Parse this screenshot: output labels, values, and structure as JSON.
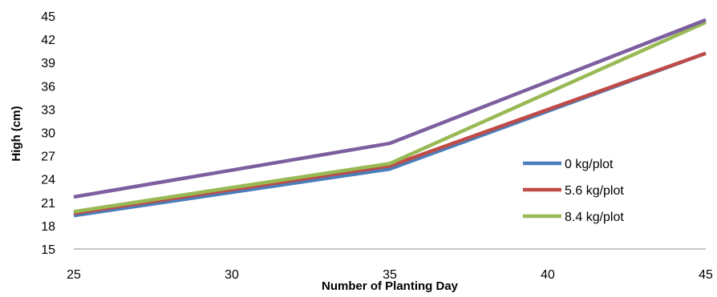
{
  "chart_data": {
    "type": "line",
    "xlabel": "Number of Planting Day",
    "ylabel": "High (cm)",
    "xlim": [
      25,
      45
    ],
    "ylim": [
      15,
      45
    ],
    "xticks": [
      25,
      30,
      35,
      40,
      45
    ],
    "yticks": [
      15,
      18,
      21,
      24,
      27,
      30,
      33,
      36,
      39,
      42,
      45
    ],
    "grid": false,
    "legend_position": "right",
    "x": [
      25,
      35,
      45
    ],
    "series": [
      {
        "name": "0 kg/plot",
        "color": "#4a7ebb",
        "values": [
          19.3,
          25.3,
          40.2
        ]
      },
      {
        "name": "5.6 kg/plot",
        "color": "#be4b48",
        "values": [
          19.6,
          25.7,
          40.2
        ]
      },
      {
        "name": "8.4 kg/plot",
        "color": "#98b954",
        "values": [
          19.8,
          26.0,
          44.2
        ]
      },
      {
        "name": "",
        "color": "#7d5fa0",
        "values": [
          21.7,
          28.6,
          44.5
        ]
      }
    ]
  }
}
